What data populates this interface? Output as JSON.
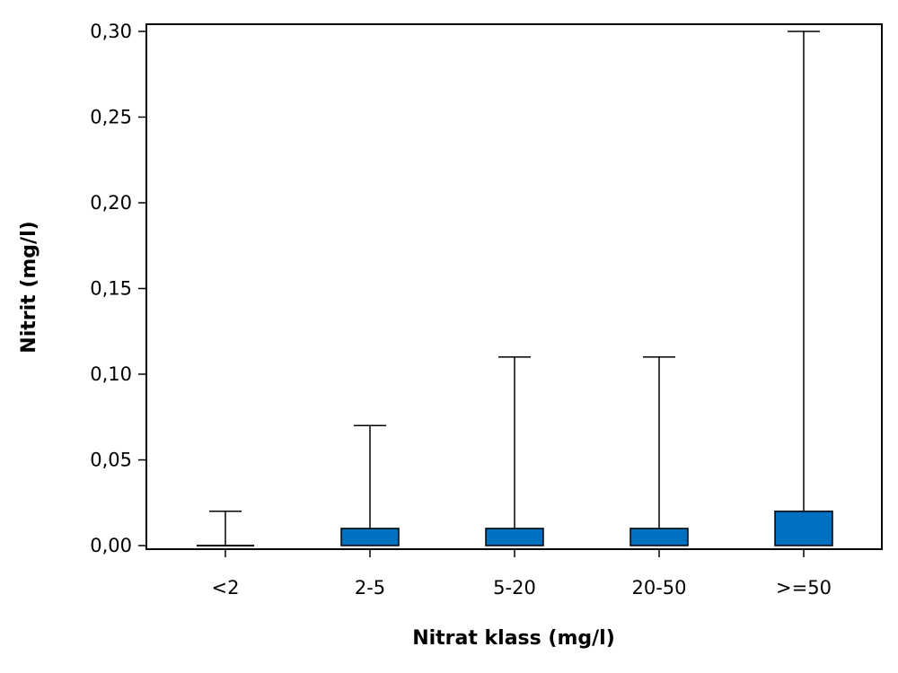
{
  "chart_data": {
    "type": "boxplot",
    "xlabel": "Nitrat klass (mg/l)",
    "ylabel": "Nitrit (mg/l)",
    "ylim": [
      0,
      0.3
    ],
    "yticks": [
      "0,00",
      "0,05",
      "0,10",
      "0,15",
      "0,20",
      "0,25",
      "0,30"
    ],
    "ytick_values": [
      0,
      0.05,
      0.1,
      0.15,
      0.2,
      0.25,
      0.3
    ],
    "grid": false,
    "box_color": "#0070c0",
    "categories": [
      "<2",
      "2-5",
      "5-20",
      "20-50",
      ">=50"
    ],
    "boxes": [
      {
        "q1": 0,
        "q3": 0,
        "whisker_high": 0.02
      },
      {
        "q1": 0,
        "q3": 0.01,
        "whisker_high": 0.07
      },
      {
        "q1": 0,
        "q3": 0.01,
        "whisker_high": 0.11
      },
      {
        "q1": 0,
        "q3": 0.01,
        "whisker_high": 0.11
      },
      {
        "q1": 0,
        "q3": 0.02,
        "whisker_high": 0.3
      }
    ]
  }
}
